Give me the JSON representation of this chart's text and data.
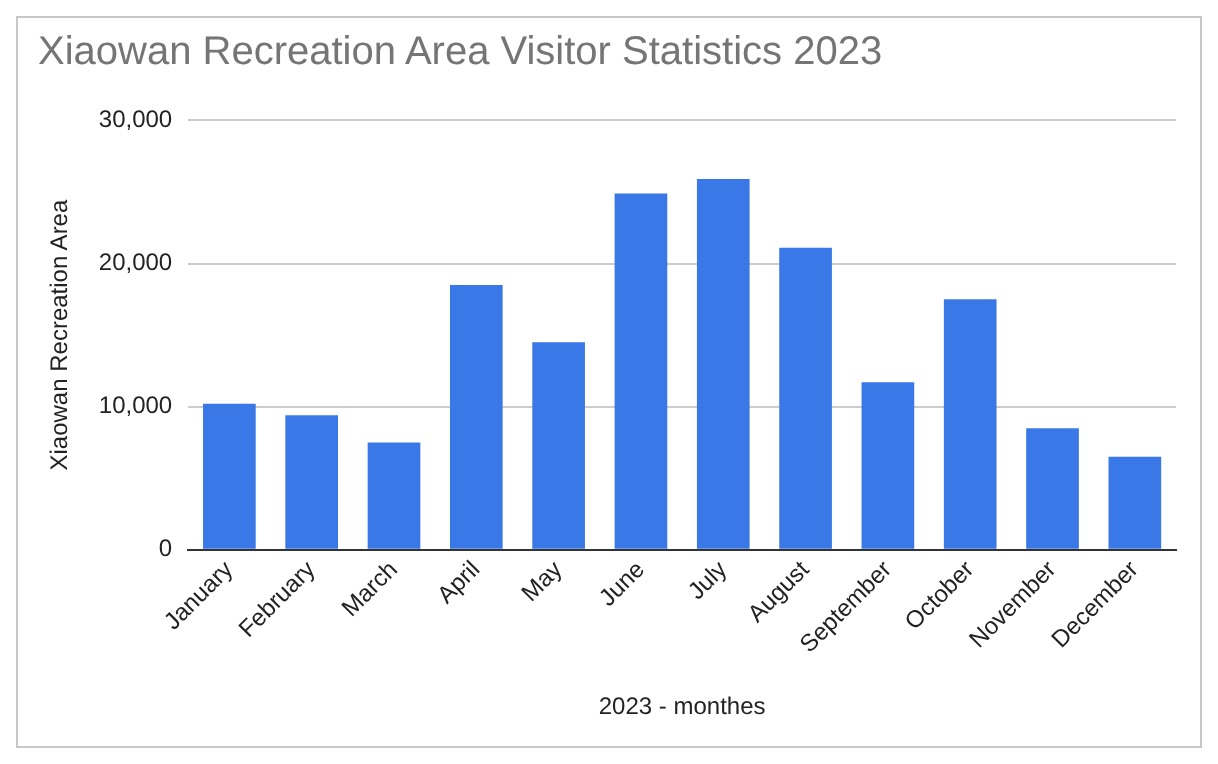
{
  "chart_data": {
    "type": "bar",
    "title": "Xiaowan Recreation Area Visitor Statistics 2023",
    "xlabel": "2023 - monthes",
    "ylabel": "Xiaowan Recreation Area",
    "categories": [
      "January",
      "February",
      "March",
      "April",
      "May",
      "June",
      "July",
      "August",
      "September",
      "October",
      "November",
      "December"
    ],
    "values": [
      10200,
      9400,
      7500,
      18500,
      14500,
      24900,
      25900,
      21100,
      11700,
      17500,
      8500,
      6500
    ],
    "color": "#3b78e7",
    "ylim": [
      0,
      30000
    ],
    "yticks": [
      {
        "value": 0,
        "label": "0"
      },
      {
        "value": 10000,
        "label": "10,000"
      },
      {
        "value": 20000,
        "label": "20,000"
      },
      {
        "value": 30000,
        "label": "30,000"
      }
    ],
    "grid": "y"
  }
}
